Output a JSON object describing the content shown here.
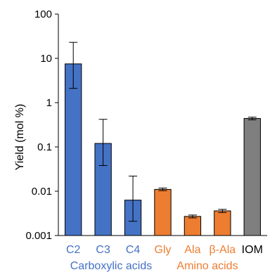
{
  "chart_data": {
    "type": "bar",
    "scale": "log",
    "ylabel": "Yield (mol %)",
    "ylim": [
      0.001,
      100
    ],
    "yticks": [
      {
        "value": 100,
        "label": "100"
      },
      {
        "value": 10,
        "label": "10"
      },
      {
        "value": 1,
        "label": "1"
      },
      {
        "value": 0.1,
        "label": "0.1"
      },
      {
        "value": 0.01,
        "label": "0.01"
      },
      {
        "value": 0.001,
        "label": "0.001"
      }
    ],
    "grid": false,
    "categories": [
      "C2",
      "C3",
      "C4",
      "Gly",
      "Ala",
      "β-Ala",
      "IOM"
    ],
    "values": [
      7.5,
      0.12,
      0.0063,
      0.011,
      0.0027,
      0.0036,
      0.44
    ],
    "error_low": [
      2.1,
      0.038,
      0.0021,
      0.0103,
      0.0025,
      0.0033,
      0.41
    ],
    "error_high": [
      23,
      0.42,
      0.022,
      0.0118,
      0.0029,
      0.0039,
      0.47
    ],
    "bar_colors": [
      "#4472c4",
      "#4472c4",
      "#4472c4",
      "#ed7d31",
      "#ed7d31",
      "#ed7d31",
      "#7f7f7f"
    ],
    "label_colors": [
      "#4472c4",
      "#4472c4",
      "#4472c4",
      "#ed7d31",
      "#ed7d31",
      "#ed7d31",
      "#000000"
    ],
    "groups": [
      {
        "label": "Carboxylic acids",
        "color": "#4472c4"
      },
      {
        "label": "Amino acids",
        "color": "#ed7d31"
      }
    ]
  }
}
